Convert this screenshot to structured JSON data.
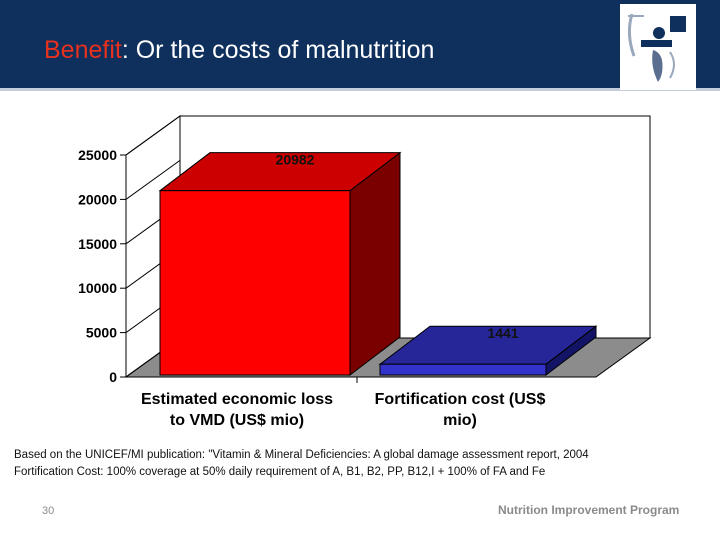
{
  "header": {
    "title_accent": "Benefit",
    "title_rest": ": Or the costs of malnutrition"
  },
  "icons": {
    "logo": "program-logo-icon"
  },
  "colors": {
    "header_bg": "#0f2f5c",
    "title_accent": "#e8301f",
    "bar_1": "#ff0000",
    "bar_2": "#3333cc",
    "floor": "#8c8c8c"
  },
  "chart_data": {
    "type": "bar",
    "three_d": true,
    "categories": [
      [
        "Estimated economic loss",
        "to VMD (US$ mio)"
      ],
      [
        "Fortification cost (US$",
        "mio)"
      ]
    ],
    "values": [
      20982,
      1441
    ],
    "data_labels": [
      "20982",
      "1441"
    ],
    "y_ticks": [
      0,
      5000,
      10000,
      15000,
      20000,
      25000
    ],
    "ylim": [
      0,
      25000
    ],
    "grid": false,
    "legend": false
  },
  "footnotes": [
    "Based on the UNICEF/MI publication: \"Vitamin & Mineral Deficiencies: A global damage assessment report, 2004",
    "Fortification Cost: 100% coverage at 50% daily requirement of A, B1, B2, PP, B12,I + 100% of FA and Fe"
  ],
  "footer": {
    "page_number": "30",
    "program_name": "Nutrition Improvement Program"
  }
}
